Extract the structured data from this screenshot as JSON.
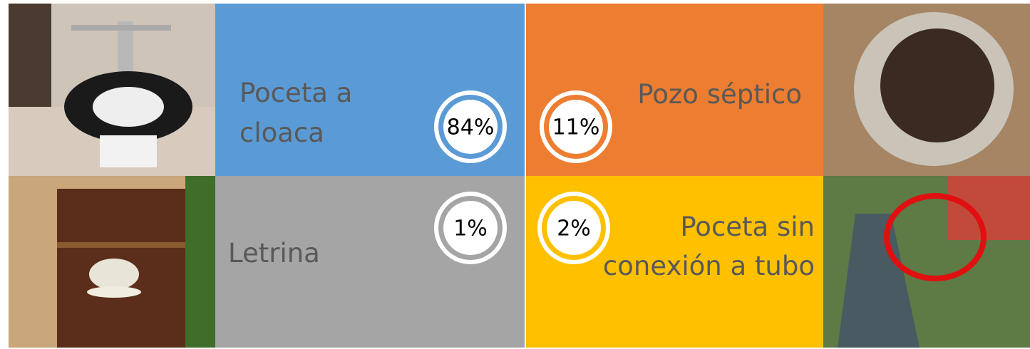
{
  "tiles": [
    {
      "label_lines": [
        "Poceta a",
        "cloaca"
      ],
      "percent": "84%"
    },
    {
      "label_lines": [
        "Pozo séptico"
      ],
      "percent": "11%"
    },
    {
      "label_lines": [
        "Letrina"
      ],
      "percent": "1%"
    },
    {
      "label_lines": [
        "Poceta sin",
        "conexión a tubo"
      ],
      "percent": "2%"
    }
  ]
}
